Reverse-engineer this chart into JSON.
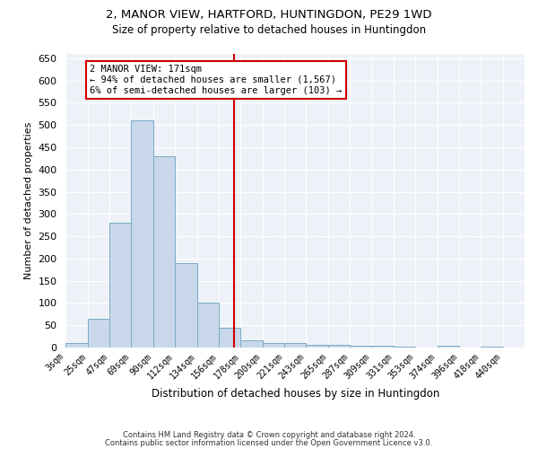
{
  "title": "2, MANOR VIEW, HARTFORD, HUNTINGDON, PE29 1WD",
  "subtitle": "Size of property relative to detached houses in Huntingdon",
  "xlabel": "Distribution of detached houses by size in Huntingdon",
  "ylabel": "Number of detached properties",
  "bar_labels": [
    "3sqm",
    "25sqm",
    "47sqm",
    "69sqm",
    "90sqm",
    "112sqm",
    "134sqm",
    "156sqm",
    "178sqm",
    "200sqm",
    "221sqm",
    "243sqm",
    "265sqm",
    "287sqm",
    "309sqm",
    "331sqm",
    "353sqm",
    "374sqm",
    "396sqm",
    "418sqm",
    "440sqm"
  ],
  "bar_heights": [
    10,
    65,
    280,
    510,
    430,
    190,
    100,
    45,
    15,
    10,
    10,
    5,
    5,
    4,
    3,
    2,
    0,
    4,
    0,
    2,
    0
  ],
  "bar_color": "#c8d8ea",
  "bar_edge_color": "#7aaac8",
  "vline_x": 7.68,
  "vline_color": "#cc0000",
  "annotation_text": "2 MANOR VIEW: 171sqm\n← 94% of detached houses are smaller (1,567)\n6% of semi-detached houses are larger (103) →",
  "annotation_box_color": "#ffffff",
  "annotation_box_edge": "#cc0000",
  "ylim": [
    0,
    660
  ],
  "yticks": [
    0,
    50,
    100,
    150,
    200,
    250,
    300,
    350,
    400,
    450,
    500,
    550,
    600,
    650
  ],
  "bg_color": "#eef2f8",
  "grid_color": "#ffffff",
  "footer_line1": "Contains HM Land Registry data © Crown copyright and database right 2024.",
  "footer_line2": "Contains public sector information licensed under the Open Government Licence v3.0."
}
